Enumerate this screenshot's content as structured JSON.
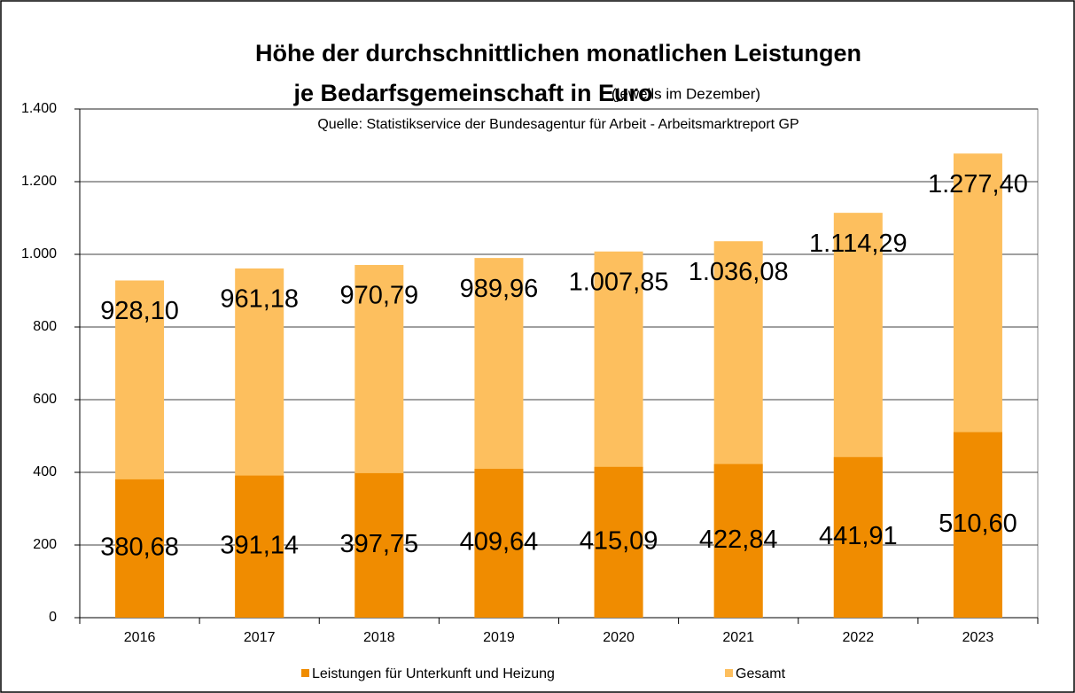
{
  "chart_data": {
    "type": "bar",
    "title": "Höhe der durchschnittlichen monatlichen Leistungen",
    "title_line2": "je Bedarfsgemeinschaft in Euro",
    "subtitle": "(jeweils im Dezember)",
    "source": "Quelle: Statistikservice der Bundesagentur für Arbeit - Arbeitsmarktreport GP",
    "categories": [
      "2016",
      "2017",
      "2018",
      "2019",
      "2020",
      "2021",
      "2022",
      "2023"
    ],
    "series": [
      {
        "name": "Leistungen für Unterkunft und Heizung",
        "color": "#f08c00",
        "values": [
          380.68,
          391.14,
          397.75,
          409.64,
          415.09,
          422.84,
          441.91,
          510.6
        ],
        "value_labels": [
          "380,68",
          "391,14",
          "397,75",
          "409,64",
          "415,09",
          "422,84",
          "441,91",
          "510,60"
        ]
      },
      {
        "name": "Gesamt",
        "color": "#fdbf5e",
        "values": [
          928.1,
          961.18,
          970.79,
          989.96,
          1007.85,
          1036.08,
          1114.29,
          1277.4
        ],
        "value_labels": [
          "928,10",
          "961,18",
          "970,79",
          "989,96",
          "1.007,85",
          "1.036,08",
          "1.114,29",
          "1.277,40"
        ]
      }
    ],
    "ylim": [
      0,
      1400
    ],
    "yticks": [
      0,
      200,
      400,
      600,
      800,
      {
        "value": 1000,
        "label": "1.000"
      },
      {
        "value": 1200,
        "label": "1.200"
      },
      {
        "value": 1400,
        "label": "1.400"
      }
    ],
    "grid": true
  }
}
